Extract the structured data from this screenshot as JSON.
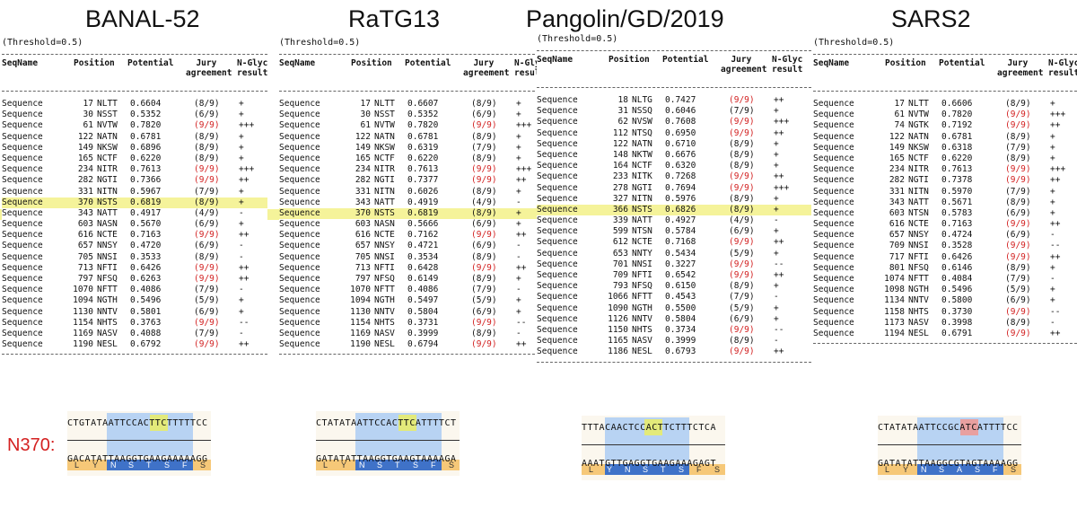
{
  "titles": [
    "BANAL-52",
    "RaTG13",
    "Pangolin/GD/2019",
    "SARS2"
  ],
  "threshold": "(Threshold=0.5)",
  "headers": {
    "seqname": "SeqName",
    "position": "Position",
    "potential": "Potential",
    "jury": "  Jury\nagreement",
    "nglyc": "N-Glyc\nresult"
  },
  "panels": [
    {
      "name": "BANAL-52",
      "highlight_index": 9,
      "rows": [
        [
          "Sequence",
          "17",
          "NLTT",
          "0.6604",
          "(8/9)",
          "+"
        ],
        [
          "Sequence",
          "30",
          "NSST",
          "0.5352",
          "(6/9)",
          "+"
        ],
        [
          "Sequence",
          "61",
          "NVTW",
          "0.7820",
          "(9/9)",
          "+++"
        ],
        [
          "Sequence",
          "122",
          "NATN",
          "0.6781",
          "(8/9)",
          "+"
        ],
        [
          "Sequence",
          "149",
          "NKSW",
          "0.6896",
          "(8/9)",
          "+"
        ],
        [
          "Sequence",
          "165",
          "NCTF",
          "0.6220",
          "(8/9)",
          "+"
        ],
        [
          "Sequence",
          "234",
          "NITR",
          "0.7613",
          "(9/9)",
          "+++"
        ],
        [
          "Sequence",
          "282",
          "NGTI",
          "0.7366",
          "(9/9)",
          "++"
        ],
        [
          "Sequence",
          "331",
          "NITN",
          "0.5967",
          "(7/9)",
          "+"
        ],
        [
          "Sequence",
          "370",
          "NSTS",
          "0.6819",
          "(8/9)",
          "+"
        ],
        [
          "Sequence",
          "343",
          "NATT",
          "0.4917",
          "(4/9)",
          "-"
        ],
        [
          "Sequence",
          "603",
          "NASN",
          "0.5670",
          "(6/9)",
          "+"
        ],
        [
          "Sequence",
          "616",
          "NCTE",
          "0.7163",
          "(9/9)",
          "++"
        ],
        [
          "Sequence",
          "657",
          "NNSY",
          "0.4720",
          "(6/9)",
          "-"
        ],
        [
          "Sequence",
          "705",
          "NNSI",
          "0.3533",
          "(8/9)",
          "-"
        ],
        [
          "Sequence",
          "713",
          "NFTI",
          "0.6426",
          "(9/9)",
          "++"
        ],
        [
          "Sequence",
          "797",
          "NFSQ",
          "0.6263",
          "(9/9)",
          "++"
        ],
        [
          "Sequence",
          "1070",
          "NFTT",
          "0.4086",
          "(7/9)",
          "-"
        ],
        [
          "Sequence",
          "1094",
          "NGTH",
          "0.5496",
          "(5/9)",
          "+"
        ],
        [
          "Sequence",
          "1130",
          "NNTV",
          "0.5801",
          "(6/9)",
          "+"
        ],
        [
          "Sequence",
          "1154",
          "NHTS",
          "0.3763",
          "(9/9)",
          "--"
        ],
        [
          "Sequence",
          "1169",
          "NASV",
          "0.4088",
          "(7/9)",
          "-"
        ],
        [
          "Sequence",
          "1190",
          "NESL",
          "0.6792",
          "(9/9)",
          "++"
        ]
      ]
    },
    {
      "name": "RaTG13",
      "highlight_index": 10,
      "rows": [
        [
          "Sequence",
          "17",
          "NLTT",
          "0.6607",
          "(8/9)",
          "+"
        ],
        [
          "Sequence",
          "30",
          "NSST",
          "0.5352",
          "(6/9)",
          "+"
        ],
        [
          "Sequence",
          "61",
          "NVTW",
          "0.7820",
          "(9/9)",
          "+++"
        ],
        [
          "Sequence",
          "122",
          "NATN",
          "0.6781",
          "(8/9)",
          "+"
        ],
        [
          "Sequence",
          "149",
          "NKSW",
          "0.6319",
          "(7/9)",
          "+"
        ],
        [
          "Sequence",
          "165",
          "NCTF",
          "0.6220",
          "(8/9)",
          "+"
        ],
        [
          "Sequence",
          "234",
          "NITR",
          "0.7613",
          "(9/9)",
          "+++"
        ],
        [
          "Sequence",
          "282",
          "NGTI",
          "0.7377",
          "(9/9)",
          "++"
        ],
        [
          "Sequence",
          "331",
          "NITN",
          "0.6026",
          "(8/9)",
          "+"
        ],
        [
          "Sequence",
          "343",
          "NATT",
          "0.4919",
          "(4/9)",
          "-"
        ],
        [
          "Sequence",
          "370",
          "NSTS",
          "0.6819",
          "(8/9)",
          "+"
        ],
        [
          "Sequence",
          "603",
          "NASN",
          "0.5666",
          "(6/9)",
          "+"
        ],
        [
          "Sequence",
          "616",
          "NCTE",
          "0.7162",
          "(9/9)",
          "++"
        ],
        [
          "Sequence",
          "657",
          "NNSY",
          "0.4721",
          "(6/9)",
          "-"
        ],
        [
          "Sequence",
          "705",
          "NNSI",
          "0.3534",
          "(8/9)",
          "-"
        ],
        [
          "Sequence",
          "713",
          "NFTI",
          "0.6428",
          "(9/9)",
          "++"
        ],
        [
          "Sequence",
          "797",
          "NFSQ",
          "0.6149",
          "(8/9)",
          "+"
        ],
        [
          "Sequence",
          "1070",
          "NFTT",
          "0.4086",
          "(7/9)",
          "-"
        ],
        [
          "Sequence",
          "1094",
          "NGTH",
          "0.5497",
          "(5/9)",
          "+"
        ],
        [
          "Sequence",
          "1130",
          "NNTV",
          "0.5804",
          "(6/9)",
          "+"
        ],
        [
          "Sequence",
          "1154",
          "NHTS",
          "0.3731",
          "(9/9)",
          "--"
        ],
        [
          "Sequence",
          "1169",
          "NASV",
          "0.3999",
          "(8/9)",
          "-"
        ],
        [
          "Sequence",
          "1190",
          "NESL",
          "0.6794",
          "(9/9)",
          "++"
        ]
      ]
    },
    {
      "name": "Pangolin/GD/2019",
      "highlight_index": 10,
      "rows": [
        [
          "Sequence",
          "18",
          "NLTG",
          "0.7427",
          "(9/9)",
          "++"
        ],
        [
          "Sequence",
          "31",
          "NSSQ",
          "0.6046",
          "(7/9)",
          "+"
        ],
        [
          "Sequence",
          "62",
          "NVSW",
          "0.7608",
          "(9/9)",
          "+++"
        ],
        [
          "Sequence",
          "112",
          "NTSQ",
          "0.6950",
          "(9/9)",
          "++"
        ],
        [
          "Sequence",
          "122",
          "NATN",
          "0.6710",
          "(8/9)",
          "+"
        ],
        [
          "Sequence",
          "148",
          "NKTW",
          "0.6676",
          "(8/9)",
          "+"
        ],
        [
          "Sequence",
          "164",
          "NCTF",
          "0.6320",
          "(8/9)",
          "+"
        ],
        [
          "Sequence",
          "233",
          "NITK",
          "0.7268",
          "(9/9)",
          "++"
        ],
        [
          "Sequence",
          "278",
          "NGTI",
          "0.7694",
          "(9/9)",
          "+++"
        ],
        [
          "Sequence",
          "327",
          "NITN",
          "0.5976",
          "(8/9)",
          "+"
        ],
        [
          "Sequence",
          "366",
          "NSTS",
          "0.6826",
          "(8/9)",
          "+"
        ],
        [
          "Sequence",
          "339",
          "NATT",
          "0.4927",
          "(4/9)",
          "-"
        ],
        [
          "Sequence",
          "599",
          "NTSN",
          "0.5784",
          "(6/9)",
          "+"
        ],
        [
          "Sequence",
          "612",
          "NCTE",
          "0.7168",
          "(9/9)",
          "++"
        ],
        [
          "Sequence",
          "653",
          "NNTY",
          "0.5434",
          "(5/9)",
          "+"
        ],
        [
          "Sequence",
          "701",
          "NNSI",
          "0.3227",
          "(9/9)",
          "--"
        ],
        [
          "Sequence",
          "709",
          "NFTI",
          "0.6542",
          "(9/9)",
          "++"
        ],
        [
          "Sequence",
          "793",
          "NFSQ",
          "0.6150",
          "(8/9)",
          "+"
        ],
        [
          "Sequence",
          "1066",
          "NFTT",
          "0.4543",
          "(7/9)",
          "-"
        ],
        [
          "Sequence",
          "1090",
          "NGTH",
          "0.5500",
          "(5/9)",
          "+"
        ],
        [
          "Sequence",
          "1126",
          "NNTV",
          "0.5804",
          "(6/9)",
          "+"
        ],
        [
          "Sequence",
          "1150",
          "NHTS",
          "0.3734",
          "(9/9)",
          "--"
        ],
        [
          "Sequence",
          "1165",
          "NASV",
          "0.3999",
          "(8/9)",
          "-"
        ],
        [
          "Sequence",
          "1186",
          "NESL",
          "0.6793",
          "(9/9)",
          "++"
        ]
      ]
    },
    {
      "name": "SARS2",
      "highlight_index": -1,
      "rows": [
        [
          "Sequence",
          "17",
          "NLTT",
          "0.6606",
          "(8/9)",
          "+"
        ],
        [
          "Sequence",
          "61",
          "NVTW",
          "0.7820",
          "(9/9)",
          "+++"
        ],
        [
          "Sequence",
          "74",
          "NGTK",
          "0.7192",
          "(9/9)",
          "++"
        ],
        [
          "Sequence",
          "122",
          "NATN",
          "0.6781",
          "(8/9)",
          "+"
        ],
        [
          "Sequence",
          "149",
          "NKSW",
          "0.6318",
          "(7/9)",
          "+"
        ],
        [
          "Sequence",
          "165",
          "NCTF",
          "0.6220",
          "(8/9)",
          "+"
        ],
        [
          "Sequence",
          "234",
          "NITR",
          "0.7613",
          "(9/9)",
          "+++"
        ],
        [
          "Sequence",
          "282",
          "NGTI",
          "0.7378",
          "(9/9)",
          "++"
        ],
        [
          "Sequence",
          "331",
          "NITN",
          "0.5970",
          "(7/9)",
          "+"
        ],
        [
          "Sequence",
          "343",
          "NATT",
          "0.5671",
          "(8/9)",
          "+"
        ],
        [
          "Sequence",
          "603",
          "NTSN",
          "0.5783",
          "(6/9)",
          "+"
        ],
        [
          "Sequence",
          "616",
          "NCTE",
          "0.7163",
          "(9/9)",
          "++"
        ],
        [
          "Sequence",
          "657",
          "NNSY",
          "0.4724",
          "(6/9)",
          "-"
        ],
        [
          "Sequence",
          "709",
          "NNSI",
          "0.3528",
          "(9/9)",
          "--"
        ],
        [
          "Sequence",
          "717",
          "NFTI",
          "0.6426",
          "(9/9)",
          "++"
        ],
        [
          "Sequence",
          "801",
          "NFSQ",
          "0.6146",
          "(8/9)",
          "+"
        ],
        [
          "Sequence",
          "1074",
          "NFTT",
          "0.4084",
          "(7/9)",
          "-"
        ],
        [
          "Sequence",
          "1098",
          "NGTH",
          "0.5496",
          "(5/9)",
          "+"
        ],
        [
          "Sequence",
          "1134",
          "NNTV",
          "0.5800",
          "(6/9)",
          "+"
        ],
        [
          "Sequence",
          "1158",
          "NHTS",
          "0.3730",
          "(9/9)",
          "--"
        ],
        [
          "Sequence",
          "1173",
          "NASV",
          "0.3998",
          "(8/9)",
          "-"
        ],
        [
          "Sequence",
          "1194",
          "NESL",
          "0.6791",
          "(9/9)",
          "++"
        ]
      ]
    }
  ],
  "n370_label": "N370:",
  "alignments": [
    {
      "top": "CTGTATAATTCCACTTCTTTTTCC",
      "bottom": "GACATATTAAGGTGAAGAAAAAGG",
      "aa": [
        "L",
        "Y",
        "N",
        "S",
        "T",
        "S",
        "F",
        "S"
      ]
    },
    {
      "top": "CTATATAATTCCACTTCATTTTCT",
      "bottom": "GATATATTAAGGTGAAGTAAAAGA",
      "aa": [
        "L",
        "Y",
        "N",
        "S",
        "T",
        "S",
        "F",
        "S"
      ]
    },
    {
      "top": "TTTACAACTCCACTTCTTTCTCA",
      "bottom": "AAATGTTGAGGTGAAGAAAGAGT",
      "aa": [
        "L",
        "Y",
        "N",
        "S",
        "T",
        "S",
        "F",
        "S"
      ]
    },
    {
      "top": "CTATATAATTCCGCATCATTTTCC",
      "bottom": "GATATATTAAGGCGTAGTAAAAGG",
      "aa": [
        "L",
        "Y",
        "N",
        "S",
        "A",
        "S",
        "F",
        "S"
      ]
    }
  ],
  "colors": {
    "red": "#d21f1f",
    "highlight": "#f5f39a",
    "codon_yellow": "#e3ea7a",
    "codon_red": "#e8a0a0"
  }
}
